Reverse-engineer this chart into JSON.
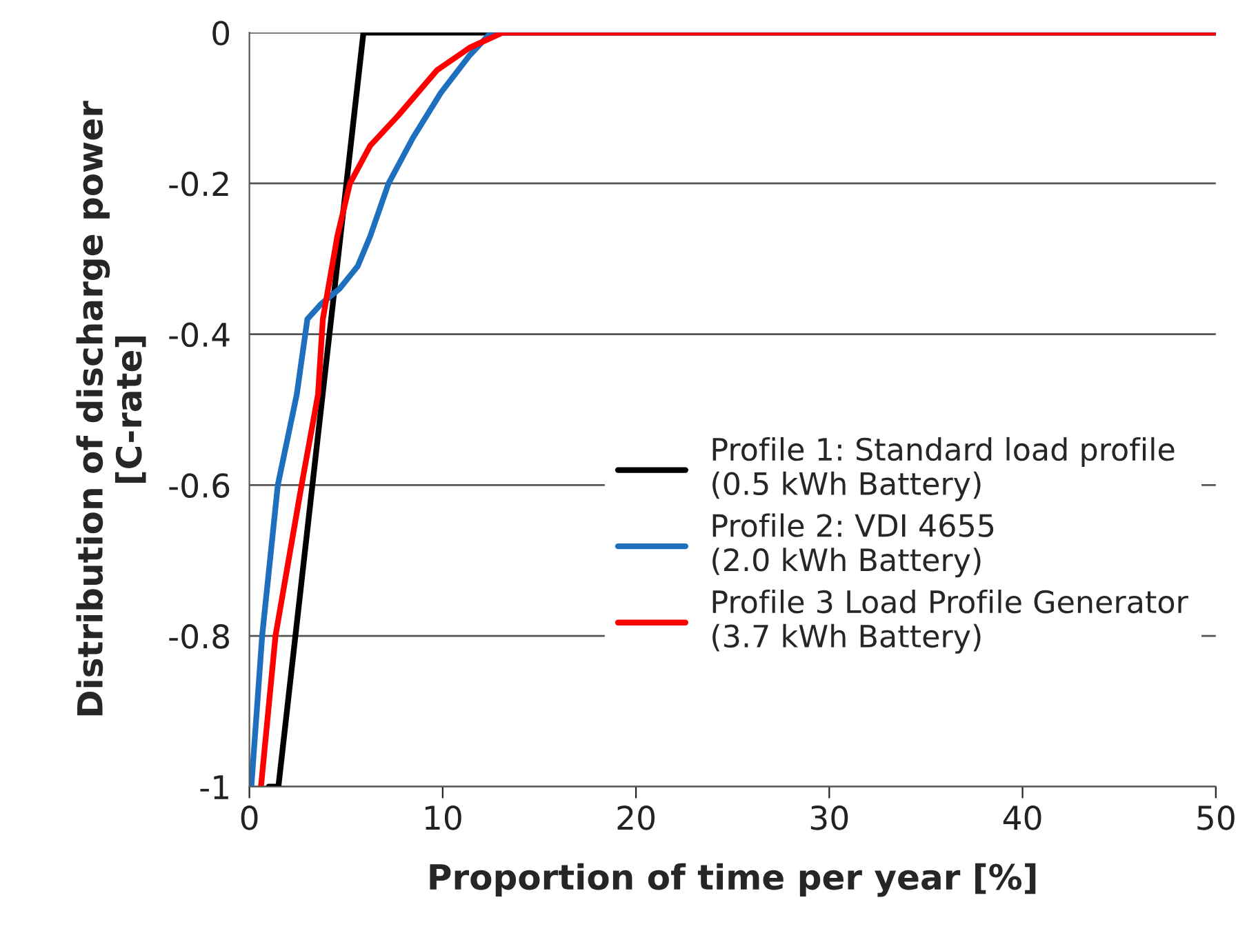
{
  "chart_data": {
    "type": "line",
    "xlabel": "Proportion of time per year [%]",
    "ylabel": "Distribution of discharge power\n[C-rate]",
    "xlim": [
      0,
      50
    ],
    "xticks": [
      0,
      10,
      20,
      30,
      40,
      50
    ],
    "ylim": [
      -1,
      0
    ],
    "yticks": [
      -1,
      -0.8,
      -0.6,
      -0.4,
      -0.2,
      0
    ],
    "grid": "y",
    "legend": "right",
    "line_style": "solid",
    "marker": "none",
    "series": [
      {
        "name": "Profile 1: Standard load profile\n(0.5 kWh Battery)",
        "color": "#000000",
        "x": [
          1.0,
          1.5,
          5.9,
          50
        ],
        "values": [
          -1,
          -1,
          0,
          0
        ]
      },
      {
        "name": "Profile 2: VDI 4655\n(2.0 kWh Battery)",
        "color": "#1f6fbf",
        "x": [
          0.1,
          0.66,
          1.47,
          2.45,
          3.0,
          3.7,
          4.65,
          5.6,
          6.25,
          7.2,
          8.45,
          9.9,
          11.4,
          12.5,
          50
        ],
        "values": [
          -1,
          -0.8,
          -0.6,
          -0.48,
          -0.38,
          -0.36,
          -0.34,
          -0.31,
          -0.27,
          -0.2,
          -0.14,
          -0.08,
          -0.03,
          0,
          0
        ]
      },
      {
        "name": "Profile 3 Load Profile Generator\n(3.7 kWh Battery)",
        "color": "#ff0000",
        "x": [
          0.6,
          1.35,
          2.7,
          3.55,
          3.8,
          4.55,
          5.2,
          6.25,
          7.7,
          9.7,
          11.4,
          13.1,
          50
        ],
        "values": [
          -1,
          -0.8,
          -0.6,
          -0.48,
          -0.38,
          -0.27,
          -0.2,
          -0.15,
          -0.11,
          -0.05,
          -0.02,
          0,
          0
        ]
      }
    ]
  }
}
